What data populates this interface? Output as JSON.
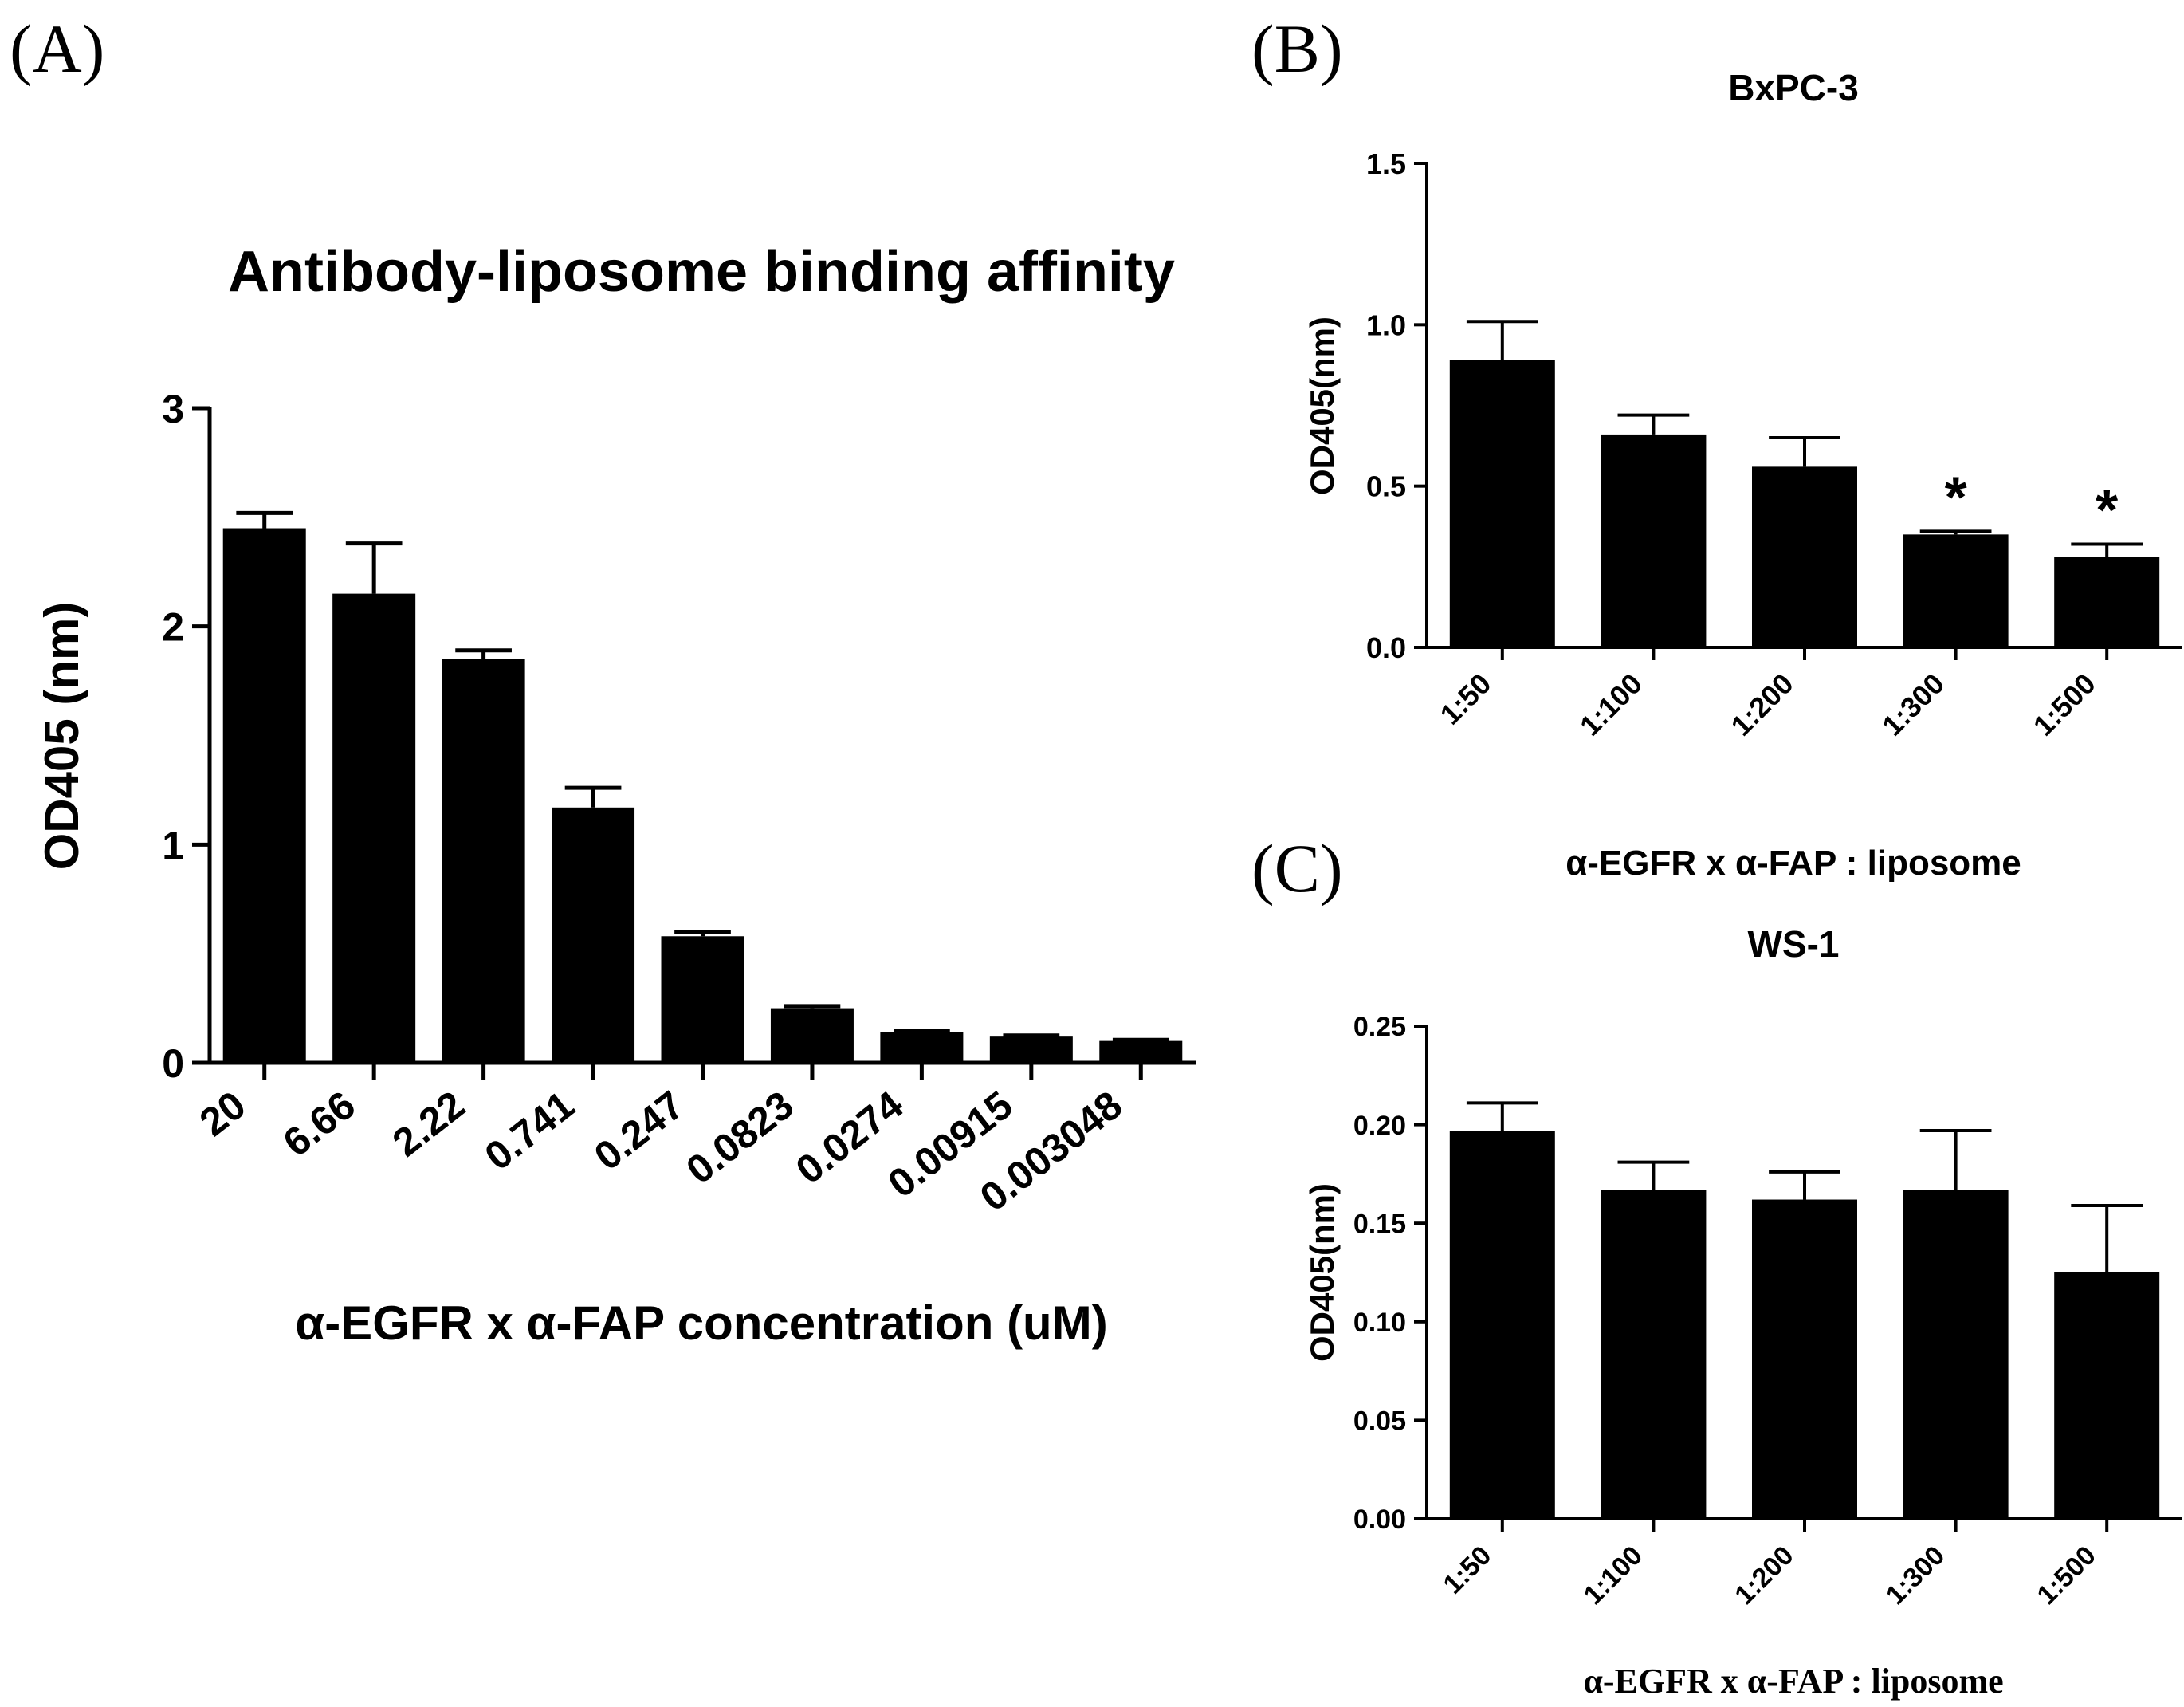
{
  "chart_data": [
    {
      "panel": "(A)",
      "type": "bar",
      "title": "Antibody-liposome binding affinity",
      "xlabel": "α-EGFR x α-FAP concentration (uM)",
      "ylabel": "OD405 (nm)",
      "ylim": [
        0,
        3
      ],
      "yticks": [
        "0",
        "1",
        "2",
        "3"
      ],
      "ytick_values": [
        0,
        1,
        2,
        3
      ],
      "grid": false,
      "categories": [
        "20",
        "6.66",
        "2.22",
        "0.741",
        "0.247",
        "0.0823",
        "0.0274",
        "0.00915",
        "0.003048"
      ],
      "values": [
        2.45,
        2.15,
        1.85,
        1.17,
        0.58,
        0.25,
        0.14,
        0.12,
        0.1
      ],
      "errors": [
        0.07,
        0.23,
        0.04,
        0.09,
        0.02,
        0.01,
        0.005,
        0.005,
        0.005
      ],
      "annotations": []
    },
    {
      "panel": "(B)",
      "type": "bar",
      "title": "BxPC-3",
      "xlabel": "α-EGFR x α-FAP : liposome",
      "ylabel": "OD405(nm)",
      "ylim": [
        0,
        1.5
      ],
      "yticks": [
        "0.0",
        "0.5",
        "1.0",
        "1.5"
      ],
      "ytick_values": [
        0,
        0.5,
        1.0,
        1.5
      ],
      "grid": false,
      "categories": [
        "1:50",
        "1:100",
        "1:200",
        "1:300",
        "1:500"
      ],
      "values": [
        0.89,
        0.66,
        0.56,
        0.35,
        0.28
      ],
      "errors": [
        0.12,
        0.06,
        0.09,
        0.01,
        0.04
      ],
      "annotations": [
        "",
        "",
        "",
        "*",
        "*"
      ]
    },
    {
      "panel": "(C)",
      "type": "bar",
      "title": "WS-1",
      "xlabel": "α-EGFR x α-FAP : liposome",
      "ylabel": "OD405(nm)",
      "ylim": [
        0,
        0.25
      ],
      "yticks": [
        "0.00",
        "0.05",
        "0.10",
        "0.15",
        "0.20",
        "0.25"
      ],
      "ytick_values": [
        0,
        0.05,
        0.1,
        0.15,
        0.2,
        0.25
      ],
      "grid": false,
      "categories": [
        "1:50",
        "1:100",
        "1:200",
        "1:300",
        "1:500"
      ],
      "values": [
        0.197,
        0.167,
        0.162,
        0.167,
        0.125
      ],
      "errors": [
        0.014,
        0.014,
        0.014,
        0.03,
        0.034
      ],
      "annotations": [
        "",
        "",
        "",
        "",
        ""
      ]
    }
  ]
}
